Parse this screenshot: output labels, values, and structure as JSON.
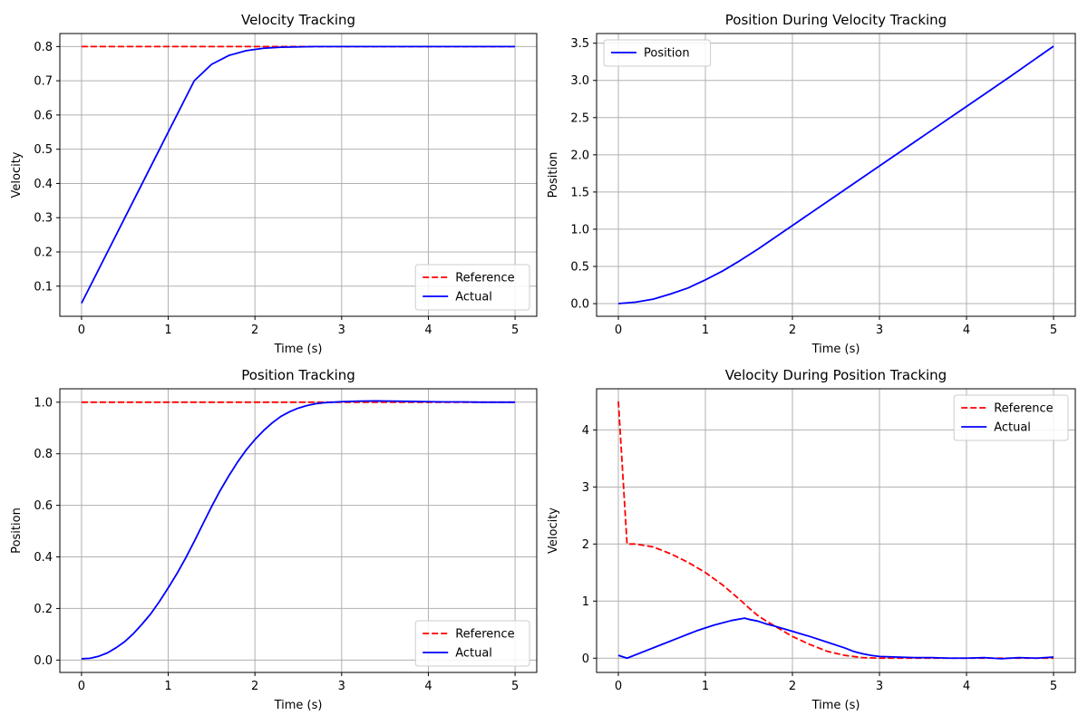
{
  "chart_data": [
    {
      "type": "line",
      "title": "Velocity Tracking",
      "xlabel": "Time (s)",
      "ylabel": "Velocity",
      "xlim": [
        -0.25,
        5.25
      ],
      "ylim": [
        0.012,
        0.838
      ],
      "xticks": [
        0,
        1,
        2,
        3,
        4,
        5
      ],
      "xtick_labels": [
        "0",
        "1",
        "2",
        "3",
        "4",
        "5"
      ],
      "yticks": [
        0.1,
        0.2,
        0.3,
        0.4,
        0.5,
        0.6,
        0.7,
        0.8
      ],
      "ytick_labels": [
        "0.1",
        "0.2",
        "0.3",
        "0.4",
        "0.5",
        "0.6",
        "0.7",
        "0.8"
      ],
      "grid": true,
      "legend_position": "lower-right",
      "series": [
        {
          "name": "Reference",
          "color": "#ff0000",
          "style": "dashed",
          "x": [
            0,
            5
          ],
          "y": [
            0.8,
            0.8
          ]
        },
        {
          "name": "Actual",
          "color": "#0000ff",
          "style": "solid",
          "x": [
            0,
            0.2,
            0.4,
            0.6,
            0.8,
            1.0,
            1.2,
            1.3,
            1.5,
            1.7,
            1.9,
            2.1,
            2.3,
            2.5,
            2.7,
            3.0,
            3.5,
            4.0,
            5.0
          ],
          "y": [
            0.05,
            0.15,
            0.25,
            0.35,
            0.45,
            0.55,
            0.65,
            0.7,
            0.748,
            0.774,
            0.788,
            0.795,
            0.798,
            0.799,
            0.8,
            0.8,
            0.8,
            0.8,
            0.8
          ]
        }
      ]
    },
    {
      "type": "line",
      "title": "Position During Velocity Tracking",
      "xlabel": "Time (s)",
      "ylabel": "Position",
      "xlim": [
        -0.25,
        5.25
      ],
      "ylim": [
        -0.17,
        3.63
      ],
      "xticks": [
        0,
        1,
        2,
        3,
        4,
        5
      ],
      "xtick_labels": [
        "0",
        "1",
        "2",
        "3",
        "4",
        "5"
      ],
      "yticks": [
        0.0,
        0.5,
        1.0,
        1.5,
        2.0,
        2.5,
        3.0,
        3.5
      ],
      "ytick_labels": [
        "0.0",
        "0.5",
        "1.0",
        "1.5",
        "2.0",
        "2.5",
        "3.0",
        "3.5"
      ],
      "grid": true,
      "legend_position": "upper-left",
      "series": [
        {
          "name": "Position",
          "color": "#0000ff",
          "style": "solid",
          "x": [
            0,
            0.2,
            0.4,
            0.6,
            0.8,
            1.0,
            1.2,
            1.4,
            1.6,
            1.8,
            2.0,
            2.5,
            3.0,
            3.5,
            4.0,
            4.5,
            5.0
          ],
          "y": [
            0.0,
            0.02,
            0.06,
            0.13,
            0.21,
            0.32,
            0.44,
            0.58,
            0.73,
            0.89,
            1.05,
            1.45,
            1.85,
            2.25,
            2.65,
            3.05,
            3.46
          ]
        }
      ]
    },
    {
      "type": "line",
      "title": "Position Tracking",
      "xlabel": "Time (s)",
      "ylabel": "Position",
      "xlim": [
        -0.25,
        5.25
      ],
      "ylim": [
        -0.048,
        1.052
      ],
      "xticks": [
        0,
        1,
        2,
        3,
        4,
        5
      ],
      "xtick_labels": [
        "0",
        "1",
        "2",
        "3",
        "4",
        "5"
      ],
      "yticks": [
        0.0,
        0.2,
        0.4,
        0.6,
        0.8,
        1.0
      ],
      "ytick_labels": [
        "0.0",
        "0.2",
        "0.4",
        "0.6",
        "0.8",
        "1.0"
      ],
      "grid": true,
      "legend_position": "lower-right",
      "series": [
        {
          "name": "Reference",
          "color": "#ff0000",
          "style": "dashed",
          "x": [
            0,
            5
          ],
          "y": [
            1.0,
            1.0
          ]
        },
        {
          "name": "Actual",
          "color": "#0000ff",
          "style": "solid",
          "x": [
            0,
            0.1,
            0.2,
            0.3,
            0.4,
            0.5,
            0.6,
            0.7,
            0.8,
            0.9,
            1.0,
            1.1,
            1.2,
            1.3,
            1.4,
            1.5,
            1.6,
            1.7,
            1.8,
            1.9,
            2.0,
            2.1,
            2.2,
            2.3,
            2.4,
            2.5,
            2.6,
            2.7,
            2.8,
            2.9,
            3.0,
            3.2,
            3.4,
            3.6,
            3.8,
            4.0,
            4.2,
            4.4,
            4.6,
            4.8,
            5.0
          ],
          "y": [
            0.005,
            0.007,
            0.015,
            0.028,
            0.048,
            0.072,
            0.103,
            0.14,
            0.18,
            0.228,
            0.28,
            0.335,
            0.395,
            0.46,
            0.528,
            0.595,
            0.658,
            0.715,
            0.768,
            0.815,
            0.855,
            0.89,
            0.92,
            0.945,
            0.963,
            0.977,
            0.987,
            0.994,
            0.998,
            1.0,
            1.002,
            1.004,
            1.005,
            1.004,
            1.003,
            1.002,
            1.001,
            1.001,
            1.0,
            1.0,
            1.0
          ]
        }
      ]
    },
    {
      "type": "line",
      "title": "Velocity During Position Tracking",
      "xlabel": "Time (s)",
      "ylabel": "Velocity",
      "xlim": [
        -0.25,
        5.25
      ],
      "ylim": [
        -0.25,
        4.72
      ],
      "xticks": [
        0,
        1,
        2,
        3,
        4,
        5
      ],
      "xtick_labels": [
        "0",
        "1",
        "2",
        "3",
        "4",
        "5"
      ],
      "yticks": [
        0,
        1,
        2,
        3,
        4
      ],
      "ytick_labels": [
        "0",
        "1",
        "2",
        "3",
        "4"
      ],
      "grid": true,
      "legend_position": "upper-right",
      "series": [
        {
          "name": "Reference",
          "color": "#ff0000",
          "style": "dashed",
          "x": [
            0,
            0.1,
            0.2,
            0.4,
            0.6,
            0.8,
            1.0,
            1.2,
            1.4,
            1.5,
            1.6,
            1.7,
            1.8,
            2.0,
            2.2,
            2.4,
            2.6,
            2.8,
            3.0,
            3.5,
            4.0,
            5.0
          ],
          "y": [
            4.5,
            2.0,
            2.0,
            1.95,
            1.83,
            1.68,
            1.5,
            1.28,
            1.02,
            0.88,
            0.75,
            0.65,
            0.56,
            0.38,
            0.24,
            0.12,
            0.05,
            0.01,
            0.0,
            0.0,
            0.0,
            0.0
          ]
        },
        {
          "name": "Actual",
          "color": "#0000ff",
          "style": "solid",
          "x": [
            0,
            0.1,
            0.3,
            0.5,
            0.7,
            0.9,
            1.1,
            1.3,
            1.45,
            1.5,
            1.6,
            1.7,
            1.8,
            2.0,
            2.2,
            2.4,
            2.6,
            2.7,
            2.8,
            2.9,
            3.0,
            3.2,
            3.4,
            3.6,
            3.8,
            4.0,
            4.2,
            4.4,
            4.6,
            4.8,
            5.0
          ],
          "y": [
            0.05,
            0.0,
            0.12,
            0.24,
            0.36,
            0.48,
            0.58,
            0.66,
            0.7,
            0.68,
            0.65,
            0.6,
            0.56,
            0.47,
            0.38,
            0.28,
            0.18,
            0.12,
            0.08,
            0.05,
            0.03,
            0.02,
            0.01,
            0.01,
            0.0,
            0.0,
            0.01,
            -0.01,
            0.01,
            0.0,
            0.02
          ]
        }
      ]
    }
  ]
}
